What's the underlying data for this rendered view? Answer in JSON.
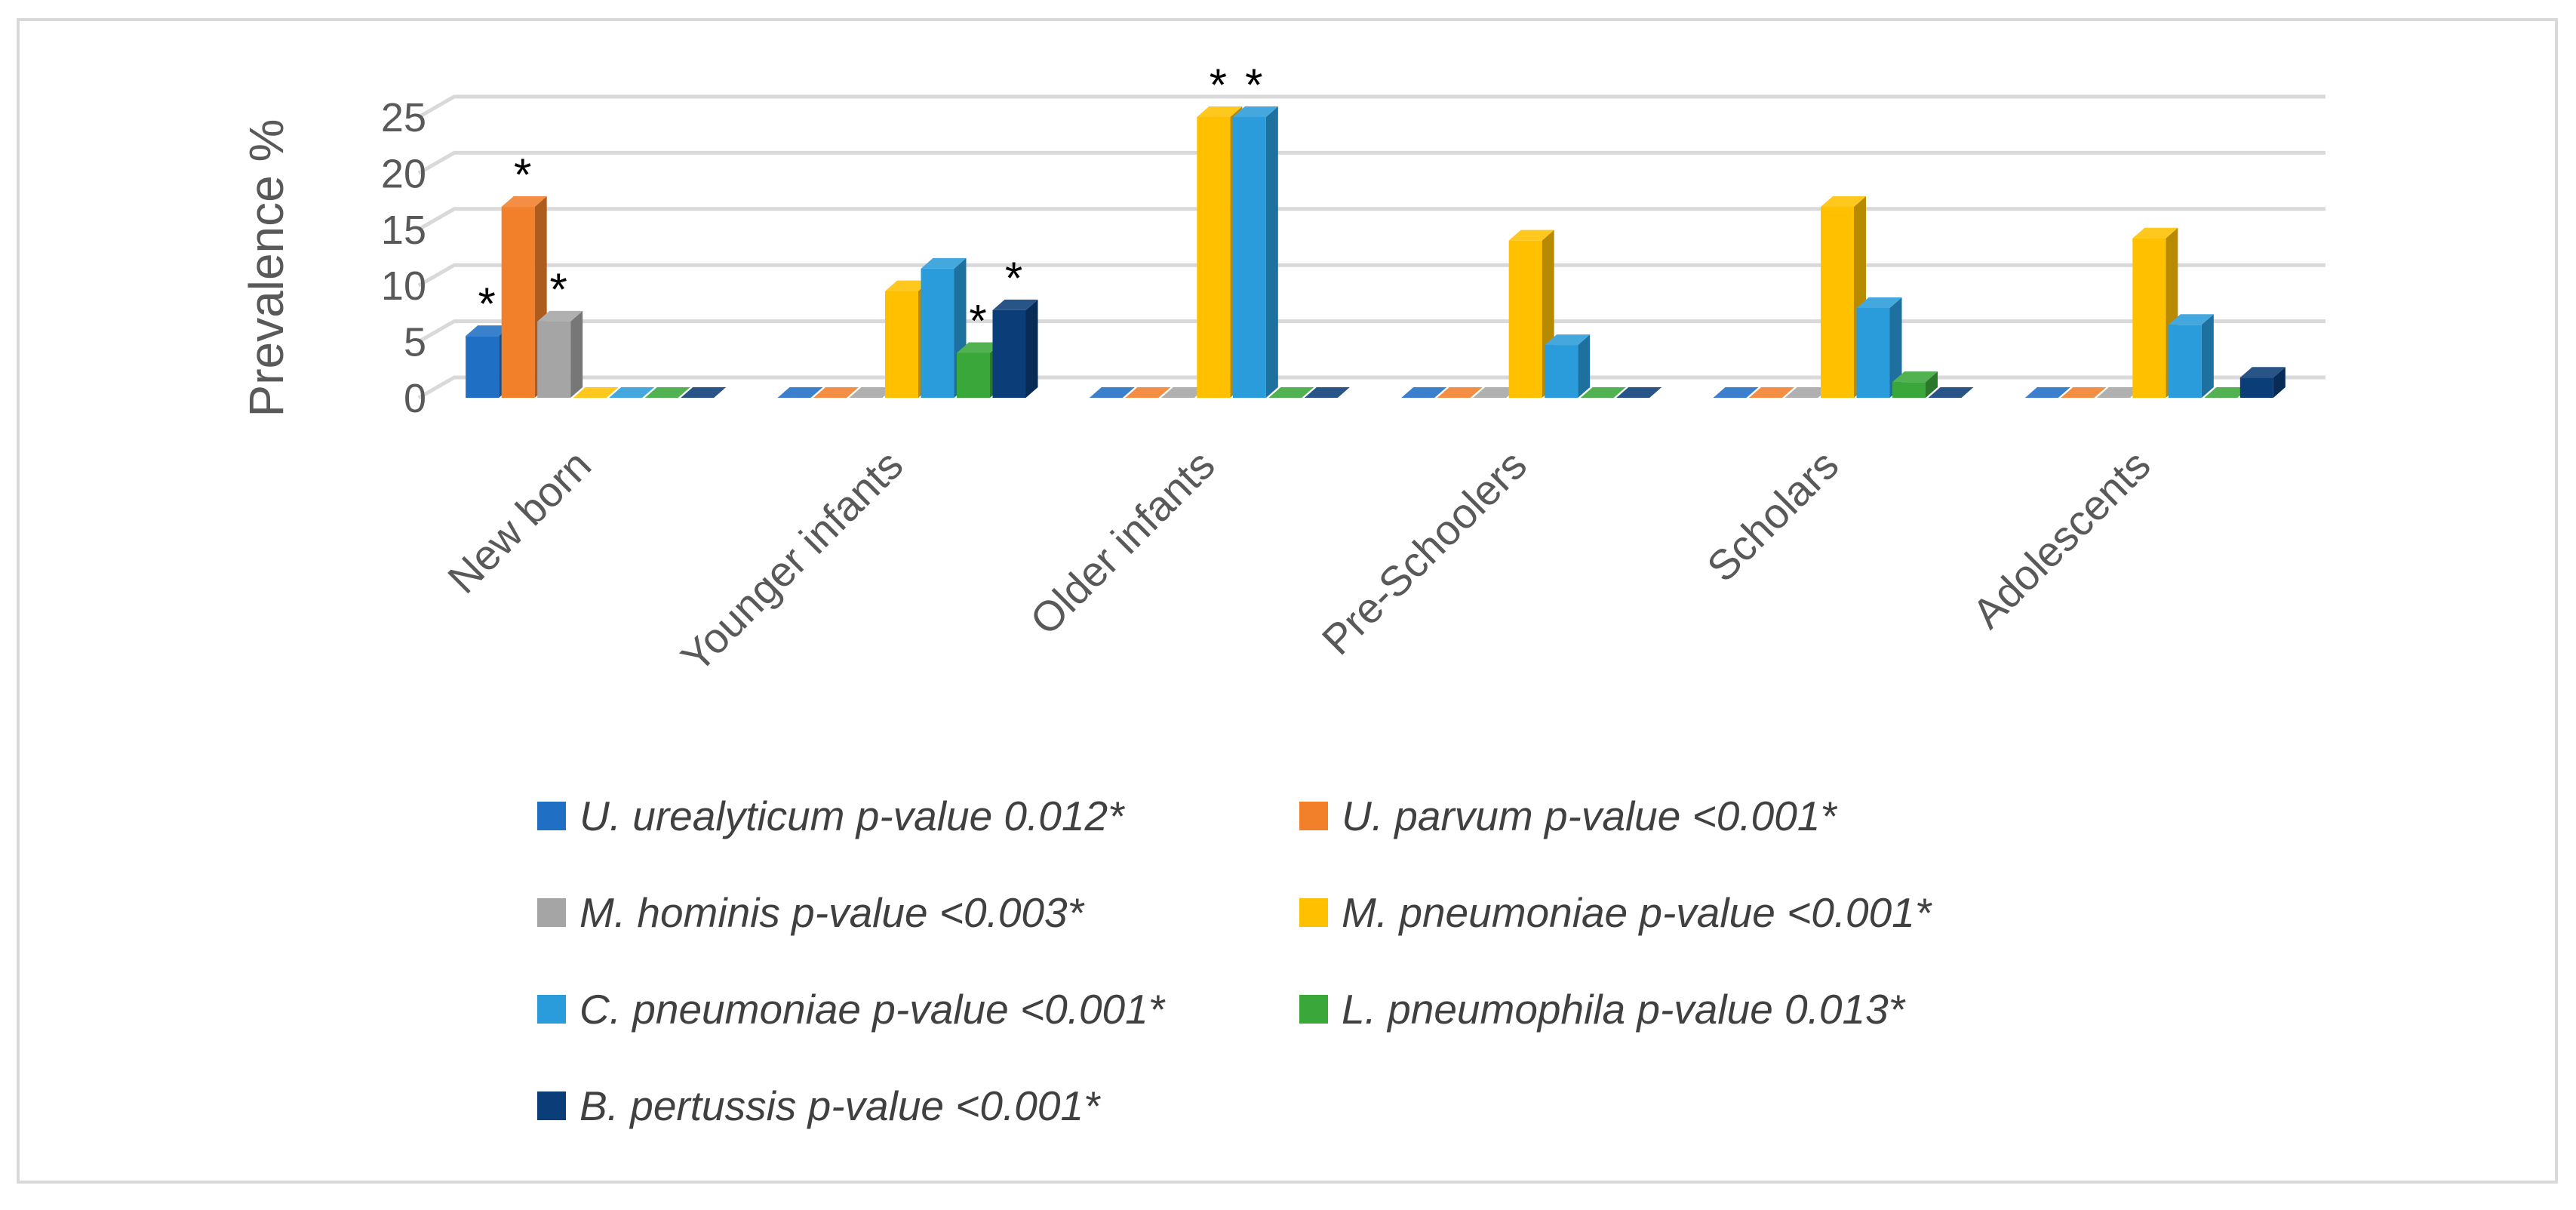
{
  "chart_data": {
    "type": "bar",
    "title": "",
    "xlabel": "",
    "ylabel": "Prevalence %",
    "ylim": [
      0,
      25
    ],
    "yticks": [
      0,
      5,
      10,
      15,
      20,
      25
    ],
    "grid": true,
    "legend_position": "bottom",
    "categories": [
      "New born",
      "Younger infants",
      "Older infants",
      "Pre-Schoolers",
      "Scholars",
      "Adolescents"
    ],
    "series": [
      {
        "name": "U. urealyticum p-value 0.012*",
        "color": "#1F6FC5",
        "values": [
          5.5,
          0,
          0,
          0,
          0,
          0
        ]
      },
      {
        "name": "U. parvum p-value <0.001*",
        "color": "#F27F2A",
        "values": [
          17,
          0,
          0,
          0,
          0,
          0
        ]
      },
      {
        "name": "M. hominis p-value <0.003*",
        "color": "#A5A5A5",
        "values": [
          6.8,
          0,
          0,
          0,
          0,
          0
        ]
      },
      {
        "name": "M. pneumoniae p-value <0.001*",
        "color": "#FFC000",
        "values": [
          0,
          9.5,
          25,
          14,
          17,
          14.2
        ]
      },
      {
        "name": "C. pneumoniae p-value <0.001*",
        "color": "#2A9CDB",
        "values": [
          0,
          11.5,
          25,
          4.7,
          8,
          6.5
        ]
      },
      {
        "name": "L. pneumophila p-value 0.013*",
        "color": "#3AA73A",
        "values": [
          0,
          4,
          0,
          0,
          1.4,
          0
        ]
      },
      {
        "name": "B. pertussis p-value <0.001*",
        "color": "#0B3D78",
        "values": [
          0,
          7.8,
          0,
          0,
          0,
          1.8
        ]
      }
    ],
    "significance_marks": [
      {
        "category": 0,
        "series": 0,
        "label": "*"
      },
      {
        "category": 0,
        "series": 1,
        "label": "*"
      },
      {
        "category": 0,
        "series": 2,
        "label": "*"
      },
      {
        "category": 1,
        "series": 5,
        "label": "*"
      },
      {
        "category": 1,
        "series": 6,
        "label": "*"
      },
      {
        "category": 2,
        "series": 3,
        "label": "*"
      },
      {
        "category": 2,
        "series": 4,
        "label": "*"
      }
    ]
  }
}
